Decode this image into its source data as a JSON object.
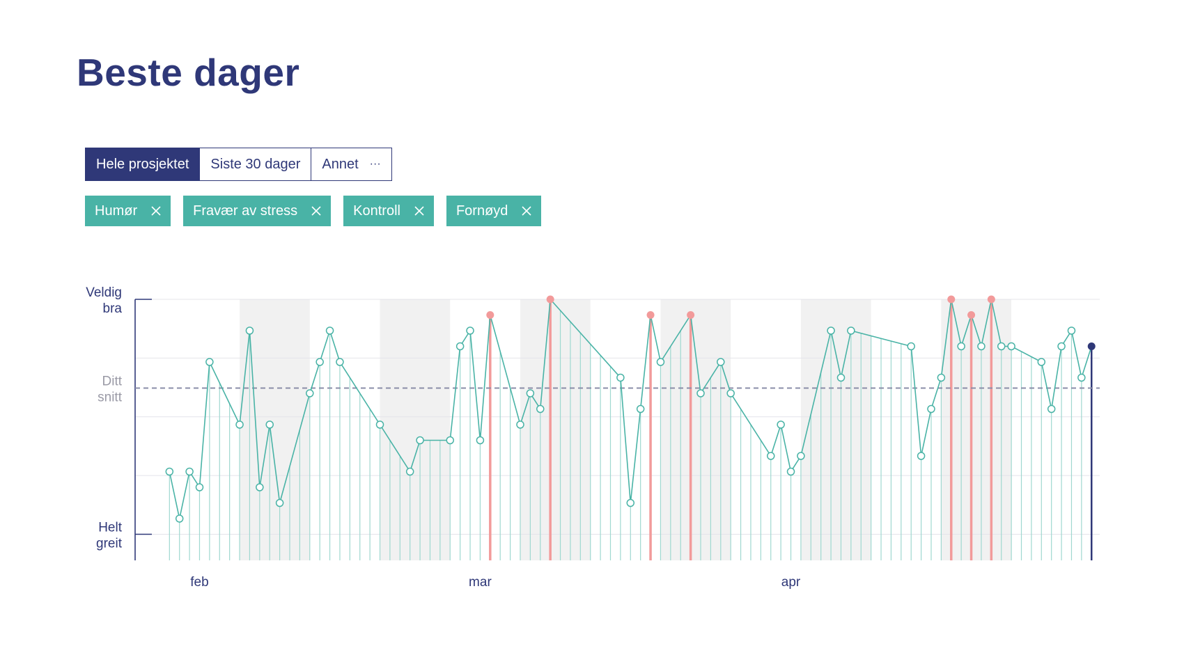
{
  "page": {
    "title": "Beste dager"
  },
  "period_tabs": {
    "items": [
      {
        "label": "Hele prosjektet",
        "active": true
      },
      {
        "label": "Siste 30 dager",
        "active": false
      },
      {
        "label": "Annet",
        "active": false
      }
    ],
    "more_glyph": "···"
  },
  "filter_tags": [
    {
      "label": "Humør"
    },
    {
      "label": "Fravær av stress"
    },
    {
      "label": "Kontroll"
    },
    {
      "label": "Fornøyd"
    }
  ],
  "chart_data": {
    "type": "line",
    "y_top_label": [
      "Veldig",
      "bra"
    ],
    "y_avg_label": [
      "Ditt",
      "snitt"
    ],
    "y_bottom_label": [
      "Helt",
      "greit"
    ],
    "x_month_labels": [
      {
        "label": "feb",
        "day": 3
      },
      {
        "label": "mar",
        "day": 31
      },
      {
        "label": "apr",
        "day": 62
      }
    ],
    "ylim": [
      -1.0,
      4.0
    ],
    "average": 2.3,
    "x_range": [
      -0.3,
      92.4
    ],
    "grid": true,
    "shaded_weeks": [
      [
        7,
        14
      ],
      [
        21,
        28
      ],
      [
        35,
        42
      ],
      [
        49,
        56
      ],
      [
        63,
        70
      ],
      [
        77,
        84
      ]
    ],
    "points": [
      {
        "day": 0,
        "value": 0.7
      },
      {
        "day": 1,
        "value": -0.2
      },
      {
        "day": 2,
        "value": 0.7
      },
      {
        "day": 3,
        "value": 0.4
      },
      {
        "day": 4,
        "value": 2.8
      },
      {
        "day": 7,
        "value": 1.6
      },
      {
        "day": 8,
        "value": 3.4
      },
      {
        "day": 9,
        "value": 0.4
      },
      {
        "day": 10,
        "value": 1.6
      },
      {
        "day": 11,
        "value": 0.1
      },
      {
        "day": 14,
        "value": 2.2
      },
      {
        "day": 15,
        "value": 2.8
      },
      {
        "day": 16,
        "value": 3.4
      },
      {
        "day": 17,
        "value": 2.8
      },
      {
        "day": 21,
        "value": 1.6
      },
      {
        "day": 24,
        "value": 0.7
      },
      {
        "day": 25,
        "value": 1.3
      },
      {
        "day": 28,
        "value": 1.3
      },
      {
        "day": 29,
        "value": 3.1
      },
      {
        "day": 30,
        "value": 3.4
      },
      {
        "day": 31,
        "value": 1.3
      },
      {
        "day": 32,
        "value": 3.7,
        "best": true
      },
      {
        "day": 35,
        "value": 1.6
      },
      {
        "day": 36,
        "value": 2.2
      },
      {
        "day": 37,
        "value": 1.9
      },
      {
        "day": 38,
        "value": 4.0,
        "best": true
      },
      {
        "day": 45,
        "value": 2.5
      },
      {
        "day": 46,
        "value": 0.1
      },
      {
        "day": 47,
        "value": 1.9
      },
      {
        "day": 48,
        "value": 3.7,
        "best": true
      },
      {
        "day": 49,
        "value": 2.8
      },
      {
        "day": 52,
        "value": 3.7,
        "best": true
      },
      {
        "day": 53,
        "value": 2.2
      },
      {
        "day": 55,
        "value": 2.8
      },
      {
        "day": 56,
        "value": 2.2
      },
      {
        "day": 60,
        "value": 1.0
      },
      {
        "day": 61,
        "value": 1.6
      },
      {
        "day": 62,
        "value": 0.7
      },
      {
        "day": 63,
        "value": 1.0
      },
      {
        "day": 66,
        "value": 3.4
      },
      {
        "day": 67,
        "value": 2.5
      },
      {
        "day": 68,
        "value": 3.4
      },
      {
        "day": 74,
        "value": 3.1
      },
      {
        "day": 75,
        "value": 1.0
      },
      {
        "day": 76,
        "value": 1.9
      },
      {
        "day": 77,
        "value": 2.5
      },
      {
        "day": 78,
        "value": 4.0,
        "best": true
      },
      {
        "day": 79,
        "value": 3.1
      },
      {
        "day": 80,
        "value": 3.7,
        "best": true
      },
      {
        "day": 81,
        "value": 3.1
      },
      {
        "day": 82,
        "value": 4.0,
        "best": true
      },
      {
        "day": 83,
        "value": 3.1
      },
      {
        "day": 84,
        "value": 3.1
      },
      {
        "day": 87,
        "value": 2.8
      },
      {
        "day": 88,
        "value": 1.9
      },
      {
        "day": 89,
        "value": 3.1
      },
      {
        "day": 90,
        "value": 3.4
      },
      {
        "day": 91,
        "value": 2.5
      },
      {
        "day": 92,
        "value": 3.1,
        "today": true
      }
    ]
  },
  "colors": {
    "brand": "#2f3878",
    "line": "#49b3a6",
    "best": "#f29a9a",
    "shade": "#f1f1f1",
    "grid": "#e4e4ea",
    "avg": "#8a8da8"
  }
}
